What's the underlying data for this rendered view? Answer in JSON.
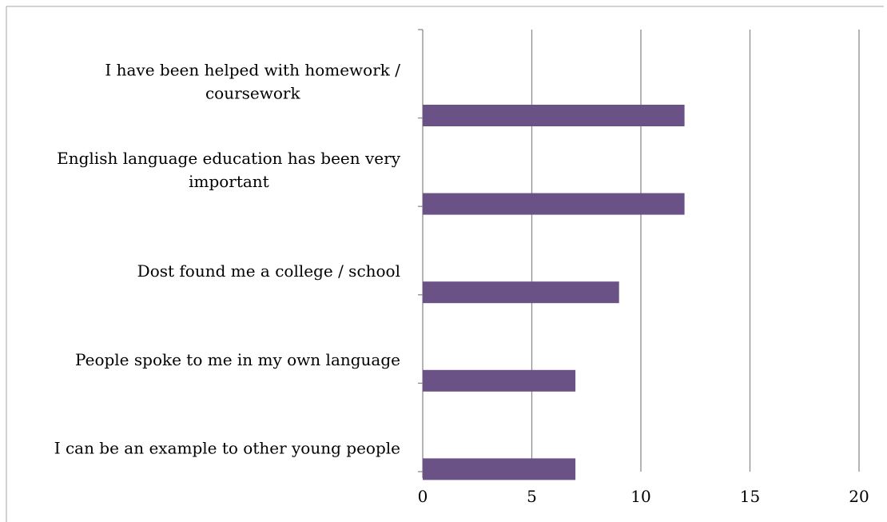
{
  "chart_data": {
    "type": "bar",
    "orientation": "horizontal",
    "title": "",
    "xlabel": "",
    "ylabel": "",
    "categories": [
      "I have been helped with homework / coursework",
      "English language education has been very important",
      "Dost found me a college / school",
      "People spoke to me in my own language",
      "I can be an example to other young people"
    ],
    "category_label_lines": [
      [
        "I have been helped with homework /",
        "coursework"
      ],
      [
        "English language education has been very",
        "important"
      ],
      [
        "Dost found me a college / school"
      ],
      [
        "People spoke to me in my own language"
      ],
      [
        "I can be an example to other young people"
      ]
    ],
    "values": [
      12,
      12,
      9,
      7,
      7
    ],
    "xlim": [
      0,
      20
    ],
    "xticks": [
      0,
      5,
      10,
      15,
      20
    ],
    "xtick_labels": [
      "0",
      "5",
      "10",
      "15",
      "20"
    ],
    "grid": "vertical",
    "legend": "none",
    "bar_color": "#6a5287",
    "grid_color": "#8c8c8c",
    "frame_color": "#a6a6a6"
  }
}
